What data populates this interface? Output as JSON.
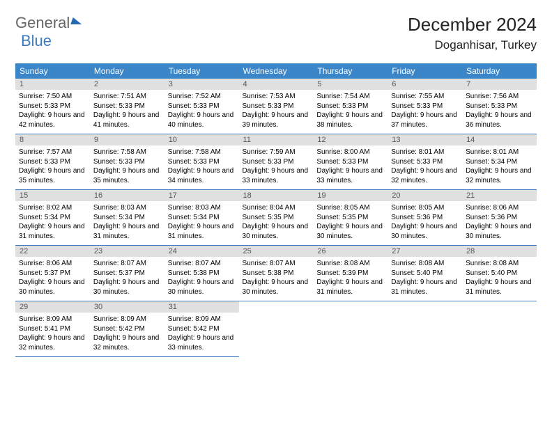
{
  "logo": {
    "part1": "General",
    "part2": "Blue"
  },
  "title": "December 2024",
  "location": "Doganhisar, Turkey",
  "colors": {
    "header_bg": "#3a86c8",
    "border": "#3a7bbf",
    "daynum_bg": "#e0e0e0",
    "logo_blue": "#3a7bbf",
    "text": "#000000",
    "bg": "#ffffff"
  },
  "weekdays": [
    "Sunday",
    "Monday",
    "Tuesday",
    "Wednesday",
    "Thursday",
    "Friday",
    "Saturday"
  ],
  "days": [
    {
      "n": "1",
      "sr": "7:50 AM",
      "ss": "5:33 PM",
      "dl": "9 hours and 42 minutes."
    },
    {
      "n": "2",
      "sr": "7:51 AM",
      "ss": "5:33 PM",
      "dl": "9 hours and 41 minutes."
    },
    {
      "n": "3",
      "sr": "7:52 AM",
      "ss": "5:33 PM",
      "dl": "9 hours and 40 minutes."
    },
    {
      "n": "4",
      "sr": "7:53 AM",
      "ss": "5:33 PM",
      "dl": "9 hours and 39 minutes."
    },
    {
      "n": "5",
      "sr": "7:54 AM",
      "ss": "5:33 PM",
      "dl": "9 hours and 38 minutes."
    },
    {
      "n": "6",
      "sr": "7:55 AM",
      "ss": "5:33 PM",
      "dl": "9 hours and 37 minutes."
    },
    {
      "n": "7",
      "sr": "7:56 AM",
      "ss": "5:33 PM",
      "dl": "9 hours and 36 minutes."
    },
    {
      "n": "8",
      "sr": "7:57 AM",
      "ss": "5:33 PM",
      "dl": "9 hours and 35 minutes."
    },
    {
      "n": "9",
      "sr": "7:58 AM",
      "ss": "5:33 PM",
      "dl": "9 hours and 35 minutes."
    },
    {
      "n": "10",
      "sr": "7:58 AM",
      "ss": "5:33 PM",
      "dl": "9 hours and 34 minutes."
    },
    {
      "n": "11",
      "sr": "7:59 AM",
      "ss": "5:33 PM",
      "dl": "9 hours and 33 minutes."
    },
    {
      "n": "12",
      "sr": "8:00 AM",
      "ss": "5:33 PM",
      "dl": "9 hours and 33 minutes."
    },
    {
      "n": "13",
      "sr": "8:01 AM",
      "ss": "5:33 PM",
      "dl": "9 hours and 32 minutes."
    },
    {
      "n": "14",
      "sr": "8:01 AM",
      "ss": "5:34 PM",
      "dl": "9 hours and 32 minutes."
    },
    {
      "n": "15",
      "sr": "8:02 AM",
      "ss": "5:34 PM",
      "dl": "9 hours and 31 minutes."
    },
    {
      "n": "16",
      "sr": "8:03 AM",
      "ss": "5:34 PM",
      "dl": "9 hours and 31 minutes."
    },
    {
      "n": "17",
      "sr": "8:03 AM",
      "ss": "5:34 PM",
      "dl": "9 hours and 31 minutes."
    },
    {
      "n": "18",
      "sr": "8:04 AM",
      "ss": "5:35 PM",
      "dl": "9 hours and 30 minutes."
    },
    {
      "n": "19",
      "sr": "8:05 AM",
      "ss": "5:35 PM",
      "dl": "9 hours and 30 minutes."
    },
    {
      "n": "20",
      "sr": "8:05 AM",
      "ss": "5:36 PM",
      "dl": "9 hours and 30 minutes."
    },
    {
      "n": "21",
      "sr": "8:06 AM",
      "ss": "5:36 PM",
      "dl": "9 hours and 30 minutes."
    },
    {
      "n": "22",
      "sr": "8:06 AM",
      "ss": "5:37 PM",
      "dl": "9 hours and 30 minutes."
    },
    {
      "n": "23",
      "sr": "8:07 AM",
      "ss": "5:37 PM",
      "dl": "9 hours and 30 minutes."
    },
    {
      "n": "24",
      "sr": "8:07 AM",
      "ss": "5:38 PM",
      "dl": "9 hours and 30 minutes."
    },
    {
      "n": "25",
      "sr": "8:07 AM",
      "ss": "5:38 PM",
      "dl": "9 hours and 30 minutes."
    },
    {
      "n": "26",
      "sr": "8:08 AM",
      "ss": "5:39 PM",
      "dl": "9 hours and 31 minutes."
    },
    {
      "n": "27",
      "sr": "8:08 AM",
      "ss": "5:40 PM",
      "dl": "9 hours and 31 minutes."
    },
    {
      "n": "28",
      "sr": "8:08 AM",
      "ss": "5:40 PM",
      "dl": "9 hours and 31 minutes."
    },
    {
      "n": "29",
      "sr": "8:09 AM",
      "ss": "5:41 PM",
      "dl": "9 hours and 32 minutes."
    },
    {
      "n": "30",
      "sr": "8:09 AM",
      "ss": "5:42 PM",
      "dl": "9 hours and 32 minutes."
    },
    {
      "n": "31",
      "sr": "8:09 AM",
      "ss": "5:42 PM",
      "dl": "9 hours and 33 minutes."
    }
  ],
  "labels": {
    "sunrise": "Sunrise:",
    "sunset": "Sunset:",
    "daylight": "Daylight:"
  },
  "layout": {
    "start_weekday": 0,
    "total_days": 31,
    "cols": 7
  }
}
